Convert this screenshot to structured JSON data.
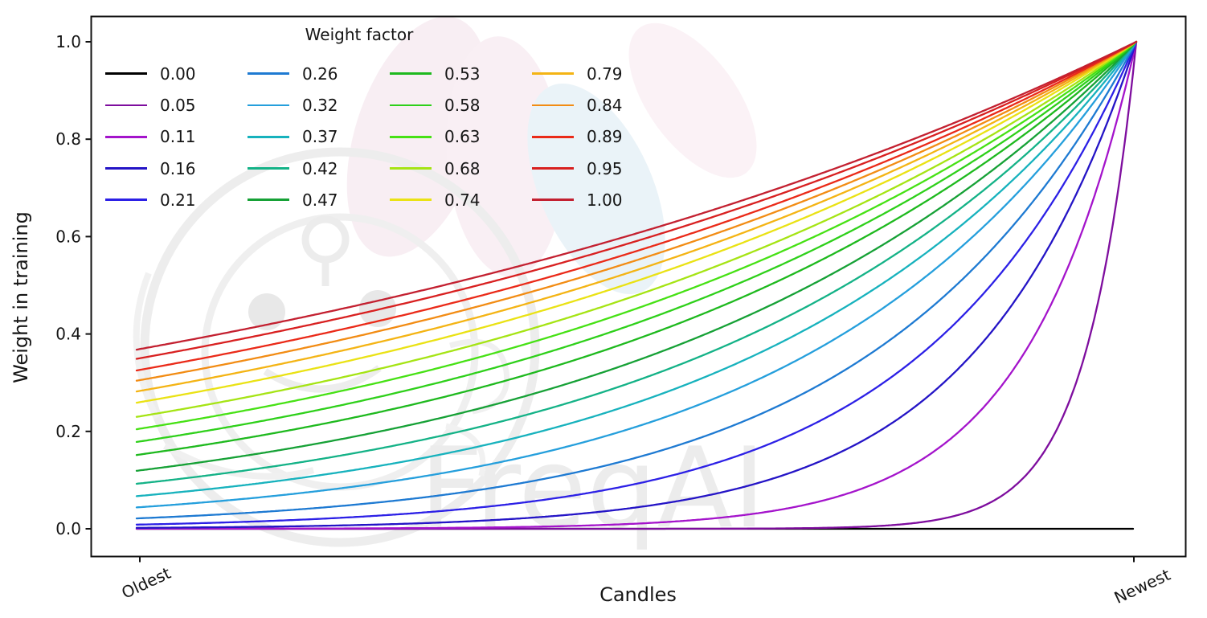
{
  "watermark": {
    "text": "FreqAI"
  },
  "chart_data": {
    "type": "line",
    "title": "",
    "xlabel": "Candles",
    "ylabel": "Weight in training",
    "xtick_labels": [
      "Oldest",
      "Newest"
    ],
    "ytick_labels": [
      "0.0",
      "0.2",
      "0.4",
      "0.6",
      "0.8",
      "1.0"
    ],
    "yticks": [
      0.0,
      0.2,
      0.4,
      0.6,
      0.8,
      1.0
    ],
    "ylim": [
      -0.05,
      1.05
    ],
    "grid": false,
    "legend": {
      "title": "Weight factor",
      "position": "upper left",
      "columns": 4
    },
    "curve_formula": "weight(t) = exp(-(1 - t) / factor), t from 0 (oldest candle) to 1 (newest candle); factor 0.00 -> weight stays 0 (flat black line), all curves converge to weight 1.0 at the newest candle",
    "series": [
      {
        "label": "0.00",
        "factor": 0.0,
        "color": "#000000"
      },
      {
        "label": "0.05",
        "factor": 0.05,
        "color": "#7e0d9e"
      },
      {
        "label": "0.11",
        "factor": 0.11,
        "color": "#a414cb"
      },
      {
        "label": "0.16",
        "factor": 0.16,
        "color": "#2414c6"
      },
      {
        "label": "0.21",
        "factor": 0.21,
        "color": "#2c20e6"
      },
      {
        "label": "0.26",
        "factor": 0.26,
        "color": "#1e7ad2"
      },
      {
        "label": "0.32",
        "factor": 0.32,
        "color": "#259fdc"
      },
      {
        "label": "0.37",
        "factor": 0.37,
        "color": "#17b2bd"
      },
      {
        "label": "0.42",
        "factor": 0.42,
        "color": "#14b287"
      },
      {
        "label": "0.47",
        "factor": 0.47,
        "color": "#16a136"
      },
      {
        "label": "0.53",
        "factor": 0.53,
        "color": "#1eb91e"
      },
      {
        "label": "0.58",
        "factor": 0.58,
        "color": "#2ed01a"
      },
      {
        "label": "0.63",
        "factor": 0.63,
        "color": "#46e114"
      },
      {
        "label": "0.68",
        "factor": 0.68,
        "color": "#a5e414"
      },
      {
        "label": "0.74",
        "factor": 0.74,
        "color": "#eae214"
      },
      {
        "label": "0.79",
        "factor": 0.79,
        "color": "#f4b414"
      },
      {
        "label": "0.84",
        "factor": 0.84,
        "color": "#f28c14"
      },
      {
        "label": "0.89",
        "factor": 0.89,
        "color": "#ea2a18"
      },
      {
        "label": "0.95",
        "factor": 0.95,
        "color": "#d82020"
      },
      {
        "label": "1.00",
        "factor": 1.0,
        "color": "#c32030"
      }
    ]
  }
}
